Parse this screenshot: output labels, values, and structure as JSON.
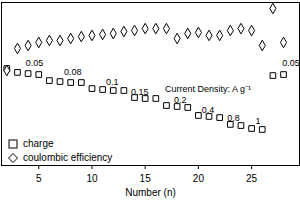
{
  "chart_data": {
    "type": "scatter",
    "x_label": "Number (n)",
    "x": [
      2,
      3,
      4,
      5,
      6,
      7,
      8,
      9,
      10,
      11,
      12,
      13,
      14,
      15,
      16,
      17,
      18,
      19,
      20,
      21,
      22,
      23,
      24,
      25,
      26,
      27,
      28
    ],
    "series": [
      {
        "name": "charge",
        "color": "#000000",
        "marker": "square",
        "values": [
          59.5,
          57.1,
          56.4,
          55.8,
          52.1,
          51.5,
          50.9,
          50.9,
          47.2,
          46.6,
          46.0,
          46.0,
          41.7,
          41.1,
          41.1,
          36.8,
          36.2,
          35.6,
          30.7,
          30.1,
          29.4,
          25.2,
          24.5,
          22.7,
          22.1,
          55.2,
          55.8
        ]
      },
      {
        "name": "coulombic efficiency",
        "color": "#000000",
        "marker": "diamond",
        "values": [
          58.3,
          71.8,
          73.6,
          75.5,
          76.7,
          76.7,
          77.9,
          79.1,
          79.8,
          80.4,
          81.0,
          82.2,
          82.8,
          84.0,
          84.0,
          84.0,
          77.9,
          81.0,
          81.6,
          79.8,
          79.8,
          82.8,
          84.0,
          82.8,
          73.6,
          96.3,
          75.5
        ]
      }
    ],
    "xlim": [
      1.5,
      29.5
    ],
    "xticks": [
      5,
      10,
      15,
      20,
      25
    ],
    "ylim": [
      0,
      100
    ],
    "tick_labels": "x",
    "legend": "lower left",
    "annotations": [
      {
        "text": "0.05",
        "x": 4.6,
        "y": 63
      },
      {
        "text": "0.08",
        "x": 8.2,
        "y": 57
      },
      {
        "text": "0.1",
        "x": 11.9,
        "y": 51
      },
      {
        "text": "0.15",
        "x": 14.5,
        "y": 45
      },
      {
        "text": "0.2",
        "x": 18.3,
        "y": 40
      },
      {
        "text": "0.4",
        "x": 20.9,
        "y": 34
      },
      {
        "text": "0.8",
        "x": 23.3,
        "y": 29
      },
      {
        "text": "1",
        "x": 25.6,
        "y": 27
      },
      {
        "text": "0.05",
        "x": 28.7,
        "y": 63
      },
      {
        "text": "Current Density: A g⁻¹",
        "x": 20.9,
        "y": 47
      }
    ]
  }
}
